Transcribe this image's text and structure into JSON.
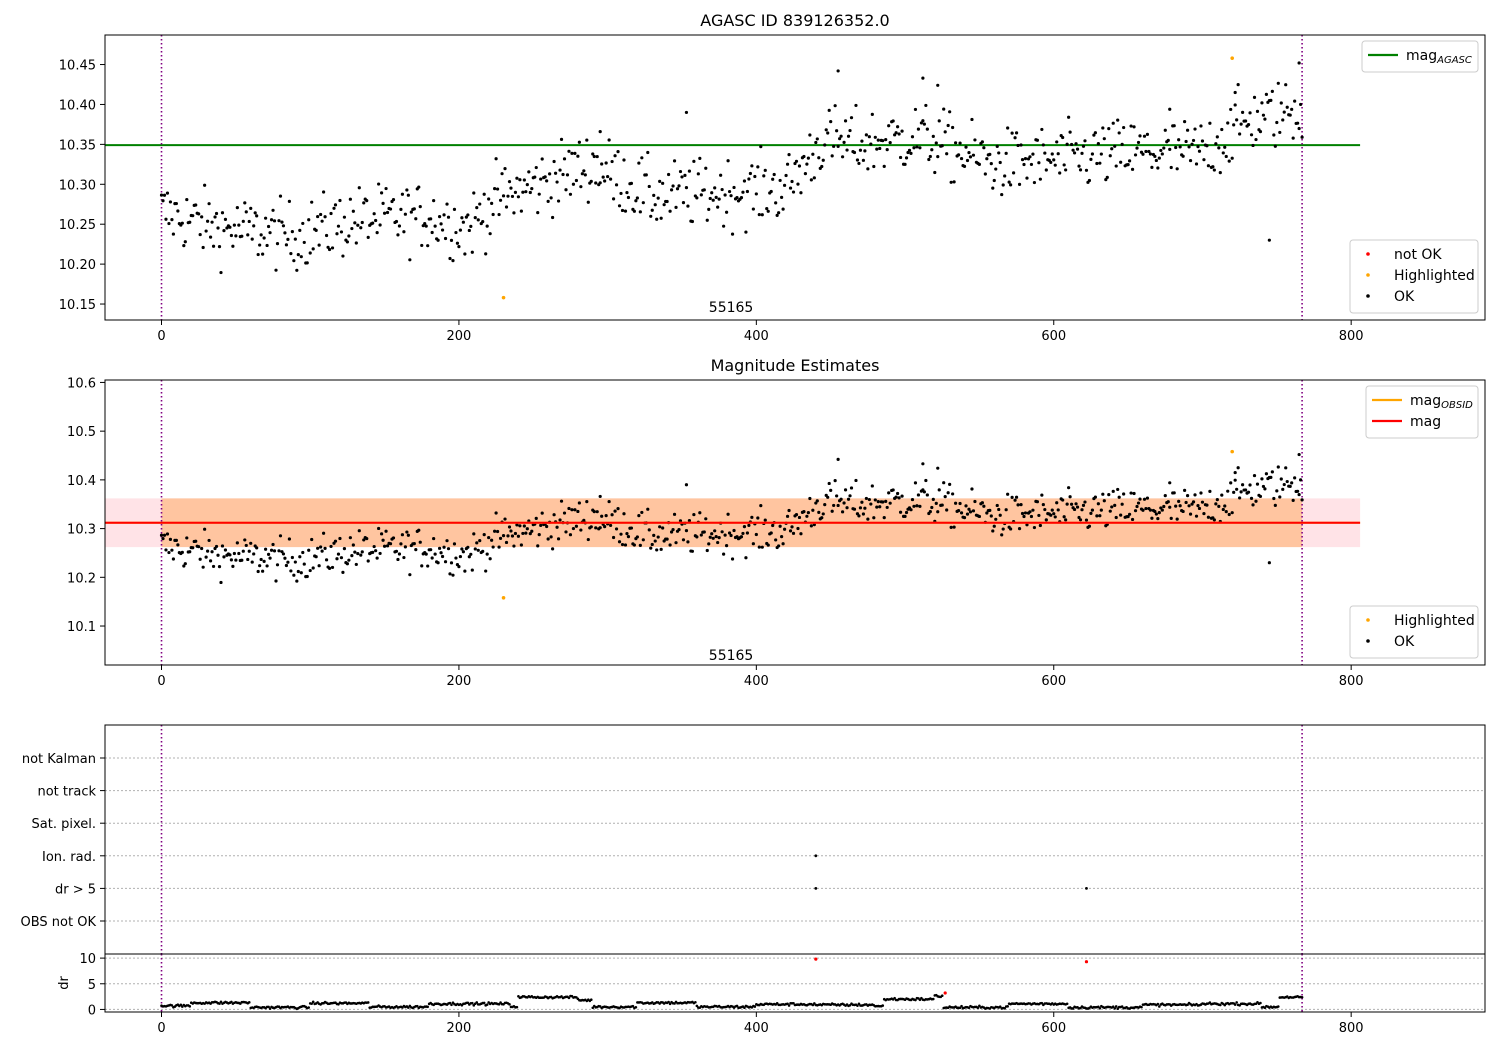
{
  "chart_data": [
    {
      "type": "scatter",
      "title": "AGASC ID 839126352.0",
      "xlim": [
        -38,
        890
      ],
      "ylim": [
        10.13,
        10.487
      ],
      "x_ticks": [
        0,
        200,
        400,
        600,
        800
      ],
      "y_ticks": [
        10.15,
        10.2,
        10.25,
        10.3,
        10.35,
        10.4,
        10.45
      ],
      "y_tick_labels": [
        "10.15",
        "10.20",
        "10.25",
        "10.30",
        "10.35",
        "10.40",
        "10.45"
      ],
      "hlines": [
        {
          "name": "mag_AGASC",
          "y": 10.349,
          "x_range": [
            -38,
            806
          ],
          "color": "#008000"
        }
      ],
      "vlines": [
        {
          "x": 0,
          "color": "#800080"
        },
        {
          "x": 767,
          "color": "#800080"
        }
      ],
      "annotations": [
        {
          "text": "55165",
          "x": 383,
          "y": 10.14
        }
      ],
      "legend_upper": {
        "placement": "top-right",
        "entries": [
          {
            "label_main": "mag",
            "label_sub": "AGASC",
            "color": "#008000",
            "marker": "line"
          }
        ]
      },
      "legend_lower": {
        "placement": "bottom-right",
        "entries": [
          {
            "label": "not OK",
            "color": "#ff0000",
            "marker": "dot"
          },
          {
            "label": "Highlighted",
            "color": "#ffa500",
            "marker": "dot"
          },
          {
            "label": "OK",
            "color": "#000000",
            "marker": "dot"
          }
        ]
      },
      "series": [
        {
          "name": "OK",
          "color": "#000000",
          "n_points": 768,
          "x_range": [
            0,
            767
          ],
          "trend": [
            [
              0,
              10.265
            ],
            [
              40,
              10.245
            ],
            [
              90,
              10.235
            ],
            [
              130,
              10.255
            ],
            [
              180,
              10.26
            ],
            [
              205,
              10.245
            ],
            [
              225,
              10.28
            ],
            [
              260,
              10.305
            ],
            [
              290,
              10.325
            ],
            [
              330,
              10.285
            ],
            [
              380,
              10.29
            ],
            [
              420,
              10.295
            ],
            [
              445,
              10.355
            ],
            [
              470,
              10.35
            ],
            [
              510,
              10.36
            ],
            [
              560,
              10.325
            ],
            [
              600,
              10.33
            ],
            [
              650,
              10.34
            ],
            [
              700,
              10.34
            ],
            [
              730,
              10.38
            ],
            [
              767,
              10.395
            ]
          ]
        },
        {
          "name": "Highlighted",
          "color": "#ffa500",
          "points": [
            [
              230,
              10.158
            ],
            [
              720,
              10.458
            ]
          ]
        },
        {
          "name": "not OK",
          "color": "#ff0000",
          "points": []
        }
      ],
      "outliers": [
        [
          353,
          10.39
        ],
        [
          745,
          10.23
        ],
        [
          455,
          10.442
        ],
        [
          512,
          10.433
        ],
        [
          522,
          10.424
        ],
        [
          295,
          10.366
        ],
        [
          678,
          10.394
        ],
        [
          722,
          10.415
        ],
        [
          765,
          10.452
        ]
      ]
    },
    {
      "type": "scatter",
      "title": "Magnitude Estimates",
      "xlim": [
        -38,
        890
      ],
      "ylim": [
        10.02,
        10.605
      ],
      "x_ticks": [
        0,
        200,
        400,
        600,
        800
      ],
      "y_ticks": [
        10.1,
        10.2,
        10.3,
        10.4,
        10.5,
        10.6
      ],
      "y_tick_labels": [
        "10.1",
        "10.2",
        "10.3",
        "10.4",
        "10.5",
        "10.6"
      ],
      "hlines": [
        {
          "name": "mag_OBSID",
          "y": 10.312,
          "x_range": [
            -38,
            806
          ],
          "color": "#ffa500"
        },
        {
          "name": "mag",
          "y": 10.312,
          "x_range": [
            -38,
            806
          ],
          "color": "#ff0000"
        }
      ],
      "bands": [
        {
          "name": "mag band",
          "y": [
            10.262,
            10.362
          ],
          "x_range": [
            -38,
            806
          ],
          "color": "#ffb6c1"
        },
        {
          "name": "mag_OBSID band",
          "y": [
            10.262,
            10.362
          ],
          "x_range": [
            0,
            767
          ],
          "color": "#ffa04a"
        }
      ],
      "vlines": [
        {
          "x": 0,
          "color": "#800080"
        },
        {
          "x": 767,
          "color": "#800080"
        }
      ],
      "annotations": [
        {
          "text": "55165",
          "x": 383,
          "y": 10.03
        }
      ],
      "legend_upper": {
        "placement": "top-right",
        "entries": [
          {
            "label_main": "mag",
            "label_sub": "OBSID",
            "color": "#ffa500",
            "marker": "line"
          },
          {
            "label_main": "mag",
            "label_sub": "",
            "color": "#ff0000",
            "marker": "line"
          }
        ]
      },
      "legend_lower": {
        "placement": "bottom-right",
        "entries": [
          {
            "label": "Highlighted",
            "color": "#ffa500",
            "marker": "dot"
          },
          {
            "label": "OK",
            "color": "#000000",
            "marker": "dot"
          }
        ]
      },
      "series": [
        {
          "name": "OK",
          "color": "#000000",
          "same_as_panel": 0
        },
        {
          "name": "Highlighted",
          "color": "#ffa500",
          "points": [
            [
              230,
              10.158
            ],
            [
              720,
              10.458
            ]
          ]
        }
      ]
    },
    {
      "type": "scatter",
      "title": "",
      "xlim": [
        -38,
        890
      ],
      "x_ticks": [
        0,
        200,
        400,
        600,
        800
      ],
      "flag_rows": [
        "not Kalman",
        "not track",
        "Sat. pixel.",
        "Ion. rad.",
        "dr > 5",
        "OBS not OK"
      ],
      "flag_points": [
        {
          "row": "Ion. rad.",
          "x": 440
        },
        {
          "row": "dr > 5",
          "x": 440
        },
        {
          "row": "dr > 5",
          "x": 622
        }
      ],
      "vlines": [
        {
          "x": 0,
          "color": "#800080"
        },
        {
          "x": 767,
          "color": "#800080"
        }
      ]
    },
    {
      "type": "scatter",
      "title": "",
      "ylabel": "dr",
      "xlim": [
        -38,
        890
      ],
      "ylim": [
        -0.5,
        10.8
      ],
      "x_ticks": [
        0,
        200,
        400,
        600,
        800
      ],
      "y_ticks": [
        0,
        5,
        10
      ],
      "y_tick_labels": [
        "0",
        "5",
        "10"
      ],
      "series": [
        {
          "name": "OK",
          "color": "#000000",
          "segments": [
            [
              0,
              0.7
            ],
            [
              20,
              1.3
            ],
            [
              60,
              0.4
            ],
            [
              100,
              1.2
            ],
            [
              140,
              0.5
            ],
            [
              180,
              1.1
            ],
            [
              235,
              0.6
            ],
            [
              240,
              2.4
            ],
            [
              280,
              1.8
            ],
            [
              290,
              0.5
            ],
            [
              320,
              1.3
            ],
            [
              360,
              0.5
            ],
            [
              400,
              1.0
            ],
            [
              440,
              0.9
            ],
            [
              480,
              0.6
            ],
            [
              486,
              2.0
            ],
            [
              520,
              2.6
            ],
            [
              526,
              0.4
            ],
            [
              570,
              1.1
            ],
            [
              610,
              0.4
            ],
            [
              660,
              0.9
            ],
            [
              700,
              1.1
            ],
            [
              740,
              0.5
            ],
            [
              752,
              2.4
            ],
            [
              767,
              2.2
            ]
          ]
        },
        {
          "name": "not OK",
          "color": "#ff0000",
          "points": [
            [
              440,
              9.8
            ],
            [
              527,
              3.2
            ],
            [
              622,
              9.3
            ]
          ]
        }
      ],
      "vlines": [
        {
          "x": 0,
          "color": "#800080"
        },
        {
          "x": 767,
          "color": "#800080"
        }
      ]
    }
  ]
}
